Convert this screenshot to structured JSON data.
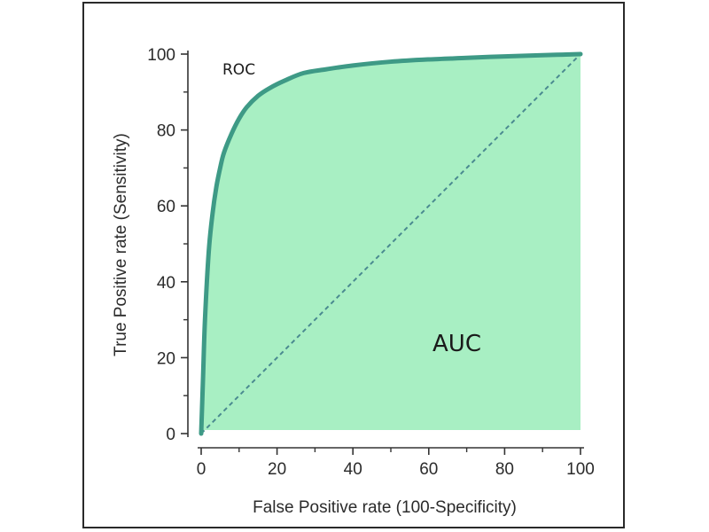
{
  "chart_data": {
    "type": "area",
    "xlabel": "False Positive rate (100-Specificity)",
    "ylabel": "True Positive rate (Sensitivity)",
    "xlim": [
      0,
      100
    ],
    "ylim": [
      0,
      100
    ],
    "x_ticks": [
      "0",
      "20",
      "40",
      "60",
      "80",
      "100"
    ],
    "y_ticks": [
      "0",
      "20",
      "40",
      "60",
      "80",
      "100"
    ],
    "grid": false,
    "annotations": [
      {
        "id": "roc",
        "text": "ROC"
      },
      {
        "id": "auc",
        "text": "AUC"
      }
    ],
    "series": [
      {
        "name": "ROC",
        "kind": "curve",
        "color": "#3e9a86",
        "fill": "#a8efc3",
        "x": [
          0,
          0.5,
          1,
          2,
          3,
          4,
          5,
          6,
          8,
          10,
          12,
          15,
          18,
          22,
          27,
          33,
          40,
          50,
          60,
          70,
          80,
          90,
          100
        ],
        "y": [
          0,
          15,
          30,
          48,
          58,
          65,
          70,
          74,
          79,
          83,
          86,
          89,
          91,
          93,
          95,
          96,
          97,
          98,
          98.6,
          99,
          99.4,
          99.7,
          100
        ]
      },
      {
        "name": "",
        "kind": "reference",
        "color": "#4a8a90",
        "dashed": true,
        "x": [
          0,
          100
        ],
        "y": [
          0,
          100
        ]
      }
    ]
  }
}
